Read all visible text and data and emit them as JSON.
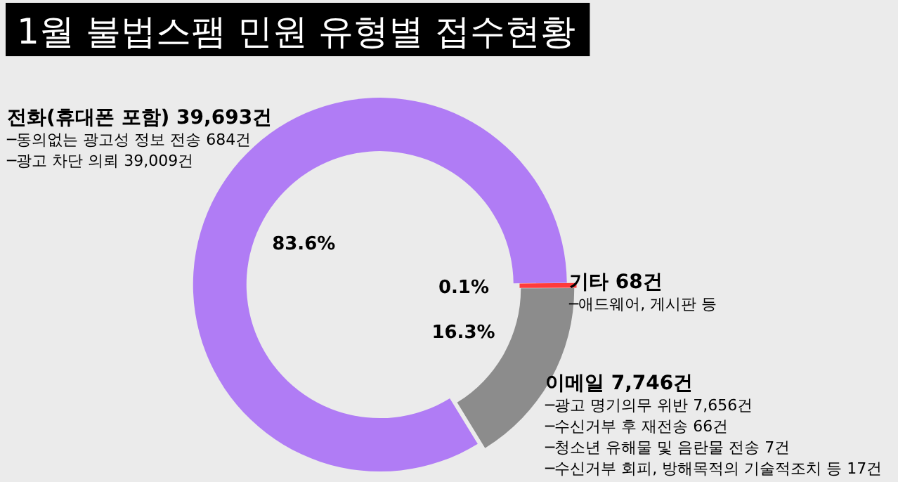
{
  "chart_data": {
    "type": "donut",
    "title": "1월 불법스팸 민원 유형별 접수현황",
    "categories": [
      "기타 68건",
      "이메일 7,746건",
      "전화(휴대폰 포함) 39,693건"
    ],
    "values": [
      0.1,
      16.3,
      83.6
    ],
    "colors": [
      "#ff3b3b",
      "#8c8c8c",
      "#b07cf5"
    ],
    "value_labels": [
      "0.1%",
      "16.3%",
      "83.6%"
    ],
    "annotations": [
      {
        "text": "─애드웨어, 게시판 등",
        "x": "기타 68건"
      },
      {
        "text": "─광고 명기의무 위반 7,656건",
        "x": "이메일 7,746건"
      },
      {
        "text": "─수신거부 후 재전송 66건",
        "x": "이메일 7,746건"
      },
      {
        "text": "─청소년 유해물 및 음란물 전송 7건",
        "x": "이메일 7,746건"
      },
      {
        "text": "─수신거부 회피, 방해목적의 기술적조치 등 17건",
        "x": "이메일 7,746건"
      },
      {
        "text": "─동의없는 광고성 정보 전송 684건",
        "x": "전화(휴대폰 포함) 39,693건"
      },
      {
        "text": "─광고 차단 의뢰 39,009건",
        "x": "전화(휴대폰 포함) 39,693건"
      }
    ]
  }
}
